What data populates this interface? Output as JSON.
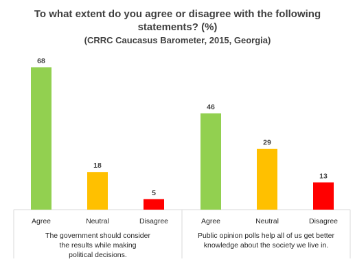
{
  "chart_data": {
    "type": "bar",
    "title_line1": "To what extent do you agree or disagree with the following",
    "title_line2": "statements? (%)",
    "subtitle": "(CRRC Caucasus Barometer, 2015, Georgia)",
    "categories": [
      "Agree",
      "Neutral",
      "Disagree"
    ],
    "colors": [
      "#92d050",
      "#ffc000",
      "#ff0000"
    ],
    "ylim": [
      0,
      68
    ],
    "groups": [
      {
        "caption_lines": [
          "The government should consider",
          "the results while making",
          "political decisions."
        ],
        "values": [
          68,
          18,
          5
        ]
      },
      {
        "caption_lines": [
          "Public opinion polls help all of us get better",
          "knowledge about the society we live in."
        ],
        "values": [
          46,
          29,
          13
        ]
      }
    ]
  }
}
